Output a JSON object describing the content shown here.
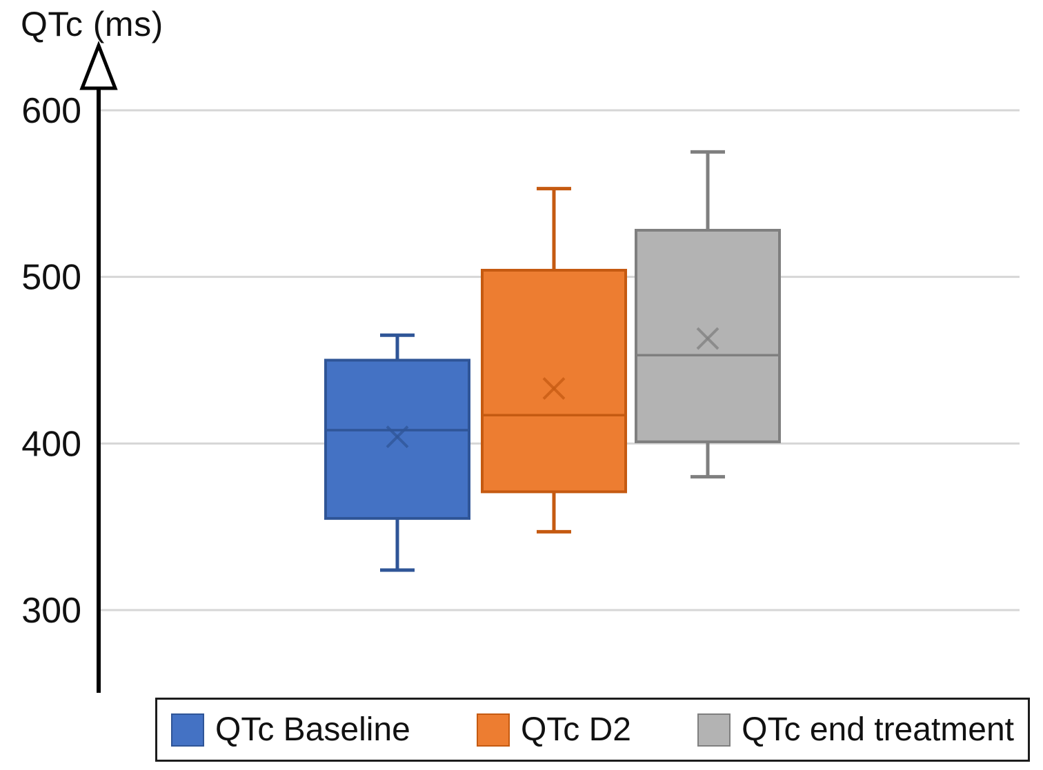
{
  "title": "QTc (ms)",
  "colors": {
    "background": "#ffffff",
    "axis": "#000000",
    "gridline": "#d6d6d6",
    "tick_label": "#111111",
    "legend_border": "#1c1c1c"
  },
  "chart_data": {
    "type": "boxplot",
    "title": "QTc (ms)",
    "ylabel": "QTc (ms)",
    "ylim": [
      250,
      640
    ],
    "yticks": [
      300,
      400,
      500,
      600
    ],
    "grid": true,
    "legend_position": "bottom",
    "series": [
      {
        "name": "QTc Baseline",
        "fill": "#4472c4",
        "stroke": "#2f5597",
        "min": 324,
        "q1": 355,
        "median": 408,
        "mean": 404,
        "q3": 450,
        "max": 465
      },
      {
        "name": "QTc D2",
        "fill": "#ed7d31",
        "stroke": "#c55a11",
        "min": 347,
        "q1": 371,
        "median": 417,
        "mean": 433,
        "q3": 504,
        "max": 553
      },
      {
        "name": "QTc end treatment",
        "fill": "#b3b3b3",
        "stroke": "#7f7f7f",
        "min": 380,
        "q1": 401,
        "median": 453,
        "mean": 463,
        "q3": 528,
        "max": 575
      }
    ]
  }
}
